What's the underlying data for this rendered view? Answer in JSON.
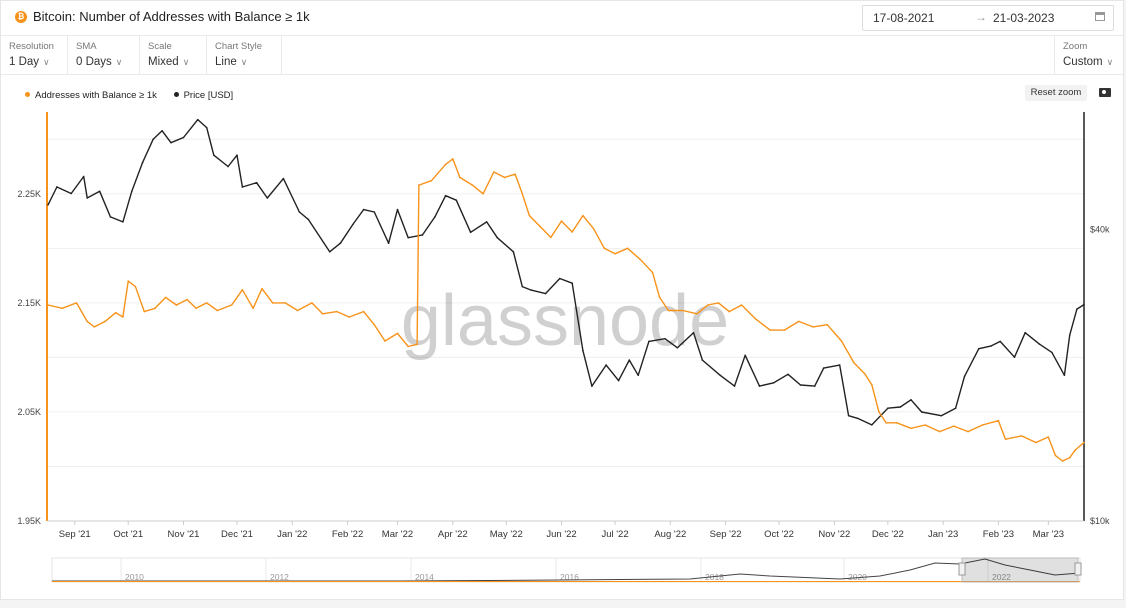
{
  "header": {
    "title": "Bitcoin: Number of Addresses with Balance ≥ 1k",
    "date_from": "17-08-2021",
    "date_arrow": "→",
    "date_to": "21-03-2023"
  },
  "controls": [
    {
      "label": "Resolution",
      "value": "1 Day"
    },
    {
      "label": "SMA",
      "value": "0 Days"
    },
    {
      "label": "Scale",
      "value": "Mixed"
    },
    {
      "label": "Chart Style",
      "value": "Line"
    }
  ],
  "zoom": {
    "label": "Zoom",
    "value": "Custom"
  },
  "reset_zoom_label": "Reset zoom",
  "watermark": "glassnode",
  "colors": {
    "addresses": "#f7931a",
    "price": "#222222"
  },
  "chart_data": {
    "type": "line",
    "x_tick_labels": [
      "Sep '21",
      "Oct '21",
      "Nov '21",
      "Dec '21",
      "Jan '22",
      "Feb '22",
      "Mar '22",
      "Apr '22",
      "May '22",
      "Jun '22",
      "Jul '22",
      "Aug '22",
      "Sep '22",
      "Oct '22",
      "Nov '22",
      "Dec '22",
      "Jan '23",
      "Feb '23",
      "Mar '23"
    ],
    "x_range": [
      "2021-08-17",
      "2023-03-21"
    ],
    "y_left": {
      "ticks": [
        "1.95K",
        "2.05K",
        "2.15K",
        "2.25K"
      ],
      "range": [
        1950,
        2325
      ]
    },
    "y_right": {
      "ticks": [
        "$10k",
        "$40k"
      ],
      "scale": "log",
      "range": [
        10000,
        70000
      ]
    },
    "legend": [
      "Addresses with Balance ≥ 1k",
      "Price [USD]"
    ],
    "series": [
      {
        "name": "Addresses with Balance ≥ 1k",
        "axis": "left",
        "points": [
          [
            "2021-08-17",
            2148
          ],
          [
            "2021-08-25",
            2145
          ],
          [
            "2021-09-02",
            2150
          ],
          [
            "2021-09-08",
            2133
          ],
          [
            "2021-09-12",
            2128
          ],
          [
            "2021-09-18",
            2133
          ],
          [
            "2021-09-24",
            2141
          ],
          [
            "2021-09-28",
            2137
          ],
          [
            "2021-10-01",
            2170
          ],
          [
            "2021-10-05",
            2165
          ],
          [
            "2021-10-10",
            2142
          ],
          [
            "2021-10-16",
            2145
          ],
          [
            "2021-10-22",
            2155
          ],
          [
            "2021-10-28",
            2148
          ],
          [
            "2021-11-03",
            2153
          ],
          [
            "2021-11-08",
            2145
          ],
          [
            "2021-11-14",
            2150
          ],
          [
            "2021-11-20",
            2143
          ],
          [
            "2021-11-28",
            2148
          ],
          [
            "2021-12-04",
            2162
          ],
          [
            "2021-12-10",
            2145
          ],
          [
            "2021-12-15",
            2163
          ],
          [
            "2021-12-21",
            2150
          ],
          [
            "2021-12-28",
            2150
          ],
          [
            "2022-01-04",
            2143
          ],
          [
            "2022-01-12",
            2150
          ],
          [
            "2022-01-18",
            2140
          ],
          [
            "2022-01-26",
            2142
          ],
          [
            "2022-02-02",
            2137
          ],
          [
            "2022-02-10",
            2142
          ],
          [
            "2022-02-16",
            2130
          ],
          [
            "2022-02-22",
            2115
          ],
          [
            "2022-03-01",
            2122
          ],
          [
            "2022-03-07",
            2110
          ],
          [
            "2022-03-12",
            2112
          ],
          [
            "2022-03-13",
            2258
          ],
          [
            "2022-03-20",
            2262
          ],
          [
            "2022-03-28",
            2277
          ],
          [
            "2022-04-01",
            2282
          ],
          [
            "2022-04-05",
            2265
          ],
          [
            "2022-04-12",
            2258
          ],
          [
            "2022-04-18",
            2250
          ],
          [
            "2022-04-24",
            2270
          ],
          [
            "2022-04-30",
            2265
          ],
          [
            "2022-05-06",
            2268
          ],
          [
            "2022-05-10",
            2250
          ],
          [
            "2022-05-14",
            2230
          ],
          [
            "2022-05-20",
            2220
          ],
          [
            "2022-05-26",
            2210
          ],
          [
            "2022-06-01",
            2225
          ],
          [
            "2022-06-07",
            2215
          ],
          [
            "2022-06-13",
            2230
          ],
          [
            "2022-06-19",
            2218
          ],
          [
            "2022-06-25",
            2200
          ],
          [
            "2022-07-01",
            2195
          ],
          [
            "2022-07-08",
            2200
          ],
          [
            "2022-07-15",
            2190
          ],
          [
            "2022-07-22",
            2178
          ],
          [
            "2022-07-26",
            2155
          ],
          [
            "2022-07-31",
            2143
          ],
          [
            "2022-08-08",
            2143
          ],
          [
            "2022-08-16",
            2140
          ],
          [
            "2022-08-22",
            2148
          ],
          [
            "2022-08-28",
            2150
          ],
          [
            "2022-09-03",
            2142
          ],
          [
            "2022-09-10",
            2148
          ],
          [
            "2022-09-18",
            2135
          ],
          [
            "2022-09-26",
            2125
          ],
          [
            "2022-10-04",
            2125
          ],
          [
            "2022-10-12",
            2133
          ],
          [
            "2022-10-20",
            2128
          ],
          [
            "2022-10-28",
            2130
          ],
          [
            "2022-11-05",
            2115
          ],
          [
            "2022-11-12",
            2095
          ],
          [
            "2022-11-18",
            2085
          ],
          [
            "2022-11-22",
            2075
          ],
          [
            "2022-11-26",
            2050
          ],
          [
            "2022-11-30",
            2040
          ],
          [
            "2022-12-06",
            2040
          ],
          [
            "2022-12-14",
            2035
          ],
          [
            "2022-12-22",
            2038
          ],
          [
            "2022-12-30",
            2032
          ],
          [
            "2023-01-07",
            2037
          ],
          [
            "2023-01-15",
            2032
          ],
          [
            "2023-01-23",
            2038
          ],
          [
            "2023-02-01",
            2042
          ],
          [
            "2023-02-05",
            2025
          ],
          [
            "2023-02-14",
            2028
          ],
          [
            "2023-02-22",
            2022
          ],
          [
            "2023-03-01",
            2027
          ],
          [
            "2023-03-05",
            2010
          ],
          [
            "2023-03-09",
            2005
          ],
          [
            "2023-03-13",
            2008
          ],
          [
            "2023-03-16",
            2015
          ],
          [
            "2023-03-21",
            2022
          ]
        ]
      },
      {
        "name": "Price [USD]",
        "axis": "right",
        "points": [
          [
            "2021-08-17",
            45000
          ],
          [
            "2021-08-22",
            49000
          ],
          [
            "2021-08-30",
            47500
          ],
          [
            "2021-09-06",
            51500
          ],
          [
            "2021-09-08",
            46500
          ],
          [
            "2021-09-15",
            48000
          ],
          [
            "2021-09-21",
            42500
          ],
          [
            "2021-09-28",
            41500
          ],
          [
            "2021-10-03",
            48000
          ],
          [
            "2021-10-09",
            55000
          ],
          [
            "2021-10-15",
            61500
          ],
          [
            "2021-10-20",
            64000
          ],
          [
            "2021-10-25",
            60500
          ],
          [
            "2021-11-01",
            62000
          ],
          [
            "2021-11-09",
            67500
          ],
          [
            "2021-11-14",
            65000
          ],
          [
            "2021-11-18",
            57000
          ],
          [
            "2021-11-26",
            54000
          ],
          [
            "2021-12-01",
            57000
          ],
          [
            "2021-12-04",
            49000
          ],
          [
            "2021-12-12",
            50000
          ],
          [
            "2021-12-18",
            46500
          ],
          [
            "2021-12-27",
            51000
          ],
          [
            "2022-01-05",
            43500
          ],
          [
            "2022-01-10",
            42000
          ],
          [
            "2022-01-22",
            36000
          ],
          [
            "2022-01-28",
            37500
          ],
          [
            "2022-02-04",
            41000
          ],
          [
            "2022-02-10",
            44000
          ],
          [
            "2022-02-16",
            43500
          ],
          [
            "2022-02-24",
            37500
          ],
          [
            "2022-03-01",
            44000
          ],
          [
            "2022-03-07",
            38500
          ],
          [
            "2022-03-15",
            39000
          ],
          [
            "2022-03-22",
            42500
          ],
          [
            "2022-03-28",
            47000
          ],
          [
            "2022-04-03",
            46000
          ],
          [
            "2022-04-11",
            39500
          ],
          [
            "2022-04-20",
            41500
          ],
          [
            "2022-04-26",
            38500
          ],
          [
            "2022-05-05",
            36000
          ],
          [
            "2022-05-10",
            30500
          ],
          [
            "2022-05-15",
            30000
          ],
          [
            "2022-05-23",
            29500
          ],
          [
            "2022-05-31",
            31700
          ],
          [
            "2022-06-07",
            31000
          ],
          [
            "2022-06-13",
            22500
          ],
          [
            "2022-06-18",
            19000
          ],
          [
            "2022-06-26",
            21000
          ],
          [
            "2022-07-03",
            19500
          ],
          [
            "2022-07-09",
            21500
          ],
          [
            "2022-07-14",
            20000
          ],
          [
            "2022-07-20",
            23500
          ],
          [
            "2022-07-29",
            23800
          ],
          [
            "2022-08-05",
            22800
          ],
          [
            "2022-08-14",
            24500
          ],
          [
            "2022-08-19",
            21500
          ],
          [
            "2022-08-29",
            20000
          ],
          [
            "2022-09-06",
            19000
          ],
          [
            "2022-09-12",
            22000
          ],
          [
            "2022-09-20",
            19000
          ],
          [
            "2022-09-28",
            19300
          ],
          [
            "2022-10-06",
            20100
          ],
          [
            "2022-10-13",
            19100
          ],
          [
            "2022-10-21",
            19000
          ],
          [
            "2022-10-26",
            20700
          ],
          [
            "2022-11-04",
            21000
          ],
          [
            "2022-11-09",
            16500
          ],
          [
            "2022-11-14",
            16300
          ],
          [
            "2022-11-22",
            15800
          ],
          [
            "2022-12-01",
            17100
          ],
          [
            "2022-12-08",
            17200
          ],
          [
            "2022-12-14",
            17800
          ],
          [
            "2022-12-20",
            16800
          ],
          [
            "2022-12-31",
            16500
          ],
          [
            "2023-01-08",
            17100
          ],
          [
            "2023-01-13",
            19900
          ],
          [
            "2023-01-21",
            22700
          ],
          [
            "2023-01-28",
            23000
          ],
          [
            "2023-02-02",
            23500
          ],
          [
            "2023-02-10",
            21800
          ],
          [
            "2023-02-16",
            24500
          ],
          [
            "2023-02-24",
            23200
          ],
          [
            "2023-03-03",
            22300
          ],
          [
            "2023-03-10",
            20000
          ],
          [
            "2023-03-13",
            24200
          ],
          [
            "2023-03-17",
            27400
          ],
          [
            "2023-03-21",
            28000
          ]
        ]
      }
    ],
    "navigator": {
      "labels": [
        "2010",
        "2012",
        "2014",
        "2016",
        "2018",
        "2020",
        "2022"
      ]
    }
  }
}
